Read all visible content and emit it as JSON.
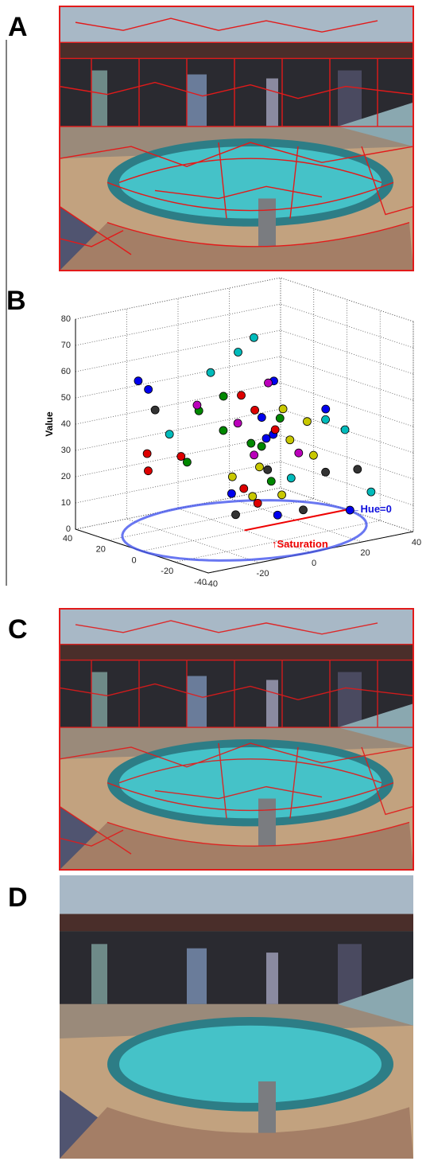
{
  "panels": [
    "A",
    "B",
    "C",
    "D"
  ],
  "chart_data": {
    "type": "scatter3d",
    "zlabel": "Value",
    "annotations": [
      "←Hue=0",
      "↑Saturation"
    ],
    "xlim": [
      -40,
      40
    ],
    "ylim": [
      -40,
      40
    ],
    "zlim": [
      0,
      80
    ],
    "xticks": [
      -40,
      -20,
      0,
      20,
      40
    ],
    "yticks": [
      -40,
      -20,
      0,
      20,
      40
    ],
    "zticks": [
      0,
      10,
      20,
      30,
      40,
      50,
      60,
      70,
      80
    ],
    "grid": true,
    "series": [
      {
        "color": "#0000ee",
        "x": [
          -22,
          -20,
          5,
          10,
          22,
          15,
          -5,
          0,
          25,
          8
        ],
        "y": [
          30,
          27,
          -10,
          5,
          -15,
          10,
          0,
          -20,
          -25,
          -5
        ],
        "z": [
          55,
          52,
          58,
          40,
          45,
          30,
          15,
          10,
          8,
          36
        ]
      },
      {
        "color": "#dd0000",
        "x": [
          -25,
          -22,
          2,
          -8,
          12,
          0,
          -15,
          6
        ],
        "y": [
          20,
          24,
          5,
          -12,
          0,
          -8,
          15,
          3
        ],
        "z": [
          30,
          22,
          50,
          20,
          36,
          12,
          28,
          44
        ]
      },
      {
        "color": "#008800",
        "x": [
          -10,
          -5,
          0,
          8,
          -12,
          4,
          10,
          -3
        ],
        "y": [
          12,
          5,
          -4,
          2,
          16,
          -10,
          -6,
          8
        ],
        "z": [
          45,
          38,
          34,
          30,
          25,
          20,
          42,
          50
        ]
      },
      {
        "color": "#c8c800",
        "x": [
          2,
          10,
          -2,
          14,
          18,
          6,
          -6,
          12
        ],
        "y": [
          -6,
          -12,
          -8,
          -20,
          -10,
          -14,
          -2,
          -4
        ],
        "z": [
          25,
          35,
          15,
          30,
          40,
          48,
          22,
          12
        ]
      },
      {
        "color": "#00bbbb",
        "x": [
          -8,
          4,
          20,
          25,
          5,
          -15,
          15,
          30
        ],
        "y": [
          8,
          10,
          -18,
          -22,
          2,
          22,
          -5,
          -30
        ],
        "z": [
          60,
          65,
          42,
          38,
          72,
          35,
          18,
          15
        ]
      },
      {
        "color": "#bb00bb",
        "x": [
          0,
          -12,
          8,
          16,
          -4
        ],
        "y": [
          4,
          10,
          -2,
          -8,
          -12
        ],
        "z": [
          40,
          48,
          55,
          28,
          32
        ]
      },
      {
        "color": "#333333",
        "x": [
          -18,
          20,
          10,
          -6,
          26,
          0
        ],
        "y": [
          26,
          -18,
          -20,
          -4,
          -28,
          -14
        ],
        "z": [
          44,
          22,
          10,
          8,
          24,
          26
        ]
      }
    ]
  }
}
